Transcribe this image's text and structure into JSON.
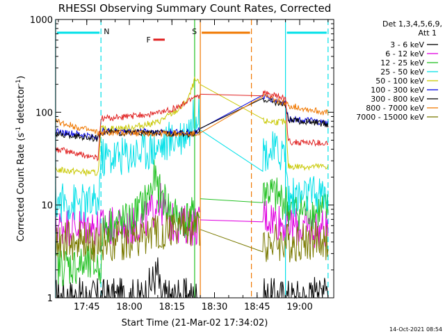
{
  "chart_data": {
    "type": "line",
    "title": "RHESSI Observing Summary Count Rates, Corrected",
    "xlabel": "Start Time (21-Mar-02 17:34:02)",
    "ylabel_main": "Corrected Count Rate (s",
    "ylabel_sup1": "-1",
    "ylabel_mid": " detector",
    "ylabel_sup2": "-1",
    "ylabel_end": ")",
    "y_scale": "log",
    "ylim": [
      1,
      1000
    ],
    "xlim": [
      "17:34:02",
      "19:12:00"
    ],
    "x_ticks": [
      "17:45",
      "18:00",
      "18:15",
      "18:30",
      "18:45",
      "19:00"
    ],
    "y_ticks": [
      "1",
      "10",
      "100",
      "1000"
    ],
    "timestamp": "14-Oct-2021 08:54",
    "legend": {
      "header1": "Det 1,3,4,5,6,9,",
      "header2": "Att 1",
      "placement": "right"
    },
    "flags": [
      {
        "letter": "N",
        "label": "N",
        "color": "#00e0e8",
        "start": "17:34",
        "end": "17:50"
      },
      {
        "letter": "F",
        "label": "F",
        "color": "#e02020",
        "start": "18:06",
        "end": "18:11"
      },
      {
        "letter": "S",
        "label": "S",
        "color": "#f07800",
        "start": "18:25",
        "end": "18:43"
      },
      {
        "letter": "N",
        "label": "",
        "color": "#00e0e8",
        "start": "18:55",
        "end": "19:10"
      }
    ],
    "night_lines": [
      {
        "time": "17:34",
        "color": "#00e0e8",
        "dash": false
      },
      {
        "time": "17:50",
        "color": "#00e0e8",
        "dash": true
      },
      {
        "time": "18:55",
        "color": "#00e0e8",
        "dash": false
      },
      {
        "time": "19:10",
        "color": "#00e0e8",
        "dash": true
      },
      {
        "time": "18:25",
        "color": "#f07800",
        "dash": false
      },
      {
        "time": "18:43",
        "color": "#f07800",
        "dash": true
      },
      {
        "time": "18:23",
        "color": "#20c020",
        "dash": false
      }
    ],
    "gap": [
      "18:25",
      "18:47"
    ],
    "series": [
      {
        "name": "3 - 6 keV",
        "color": "#000000",
        "points": [
          [
            "17:34",
            1.0
          ],
          [
            "18:05",
            1.0
          ],
          [
            "18:10",
            1.9
          ],
          [
            "18:11",
            1.0
          ],
          [
            "19:05",
            1.0
          ],
          [
            "19:06",
            2.0
          ],
          [
            "19:07",
            1.0
          ],
          [
            "19:09",
            1.9
          ],
          [
            "19:10",
            1.0
          ]
        ]
      },
      {
        "name": "6 - 12 keV",
        "color": "#e000e0",
        "points": [
          [
            "17:34",
            6.0
          ],
          [
            "17:50",
            5.8
          ],
          [
            "18:00",
            5.7
          ],
          [
            "18:05",
            6.5
          ],
          [
            "18:08",
            8.5
          ],
          [
            "18:10",
            12
          ],
          [
            "18:12",
            9
          ],
          [
            "18:14",
            6.5
          ],
          [
            "18:17",
            6.2
          ],
          [
            "18:23",
            6.0
          ],
          [
            "18:47",
            8.0
          ],
          [
            "18:52",
            7.0
          ],
          [
            "18:56",
            6.0
          ],
          [
            "19:05",
            5.5
          ],
          [
            "19:10",
            5.6
          ]
        ]
      },
      {
        "name": "12 - 25 keV",
        "color": "#20c020",
        "points": [
          [
            "17:34",
            2.2
          ],
          [
            "17:50",
            2.2
          ],
          [
            "17:51",
            6.0
          ],
          [
            "18:00",
            6.5
          ],
          [
            "18:05",
            10
          ],
          [
            "18:08",
            15
          ],
          [
            "18:09",
            20
          ],
          [
            "18:10",
            14
          ],
          [
            "18:12",
            12
          ],
          [
            "18:15",
            8
          ],
          [
            "18:20",
            7
          ],
          [
            "18:23",
            7.5
          ],
          [
            "18:47",
            15
          ],
          [
            "18:52",
            12
          ],
          [
            "18:55",
            11
          ],
          [
            "18:56",
            9
          ],
          [
            "19:05",
            8.5
          ],
          [
            "19:10",
            8.5
          ]
        ]
      },
      {
        "name": "25 - 50 keV",
        "color": "#00e0e8",
        "points": [
          [
            "17:34",
            11
          ],
          [
            "17:49",
            10
          ],
          [
            "17:50",
            32
          ],
          [
            "18:00",
            35
          ],
          [
            "18:10",
            42
          ],
          [
            "18:18",
            56
          ],
          [
            "18:22",
            72
          ],
          [
            "18:23",
            100
          ],
          [
            "18:47",
            38
          ],
          [
            "18:55",
            37
          ],
          [
            "18:56",
            12
          ],
          [
            "19:10",
            13
          ]
        ]
      },
      {
        "name": "50 - 100 keV",
        "color": "#c8c800",
        "points": [
          [
            "17:34",
            24
          ],
          [
            "17:49",
            22
          ],
          [
            "17:50",
            66
          ],
          [
            "18:00",
            68
          ],
          [
            "18:10",
            78
          ],
          [
            "18:18",
            110
          ],
          [
            "18:21",
            145
          ],
          [
            "18:23",
            220
          ],
          [
            "18:47",
            80
          ],
          [
            "18:55",
            78
          ],
          [
            "18:56",
            26
          ],
          [
            "19:10",
            26
          ]
        ]
      },
      {
        "name": "100 - 300 keV",
        "color": "#0000e0",
        "points": [
          [
            "17:34",
            62
          ],
          [
            "17:49",
            54
          ],
          [
            "17:50",
            63
          ],
          [
            "18:00",
            62
          ],
          [
            "18:10",
            62
          ],
          [
            "18:23",
            60
          ],
          [
            "18:47",
            148
          ],
          [
            "18:55",
            125
          ],
          [
            "18:56",
            86
          ],
          [
            "19:05",
            80
          ],
          [
            "19:10",
            76
          ]
        ]
      },
      {
        "name": "300 - 800 keV",
        "color": "#000000",
        "points": [
          [
            "17:34",
            58
          ],
          [
            "17:49",
            52
          ],
          [
            "17:50",
            61
          ],
          [
            "18:00",
            60
          ],
          [
            "18:10",
            60
          ],
          [
            "18:23",
            58
          ],
          [
            "18:47",
            140
          ],
          [
            "18:55",
            120
          ],
          [
            "18:56",
            82
          ],
          [
            "19:05",
            78
          ],
          [
            "19:10",
            74
          ]
        ]
      },
      {
        "name": "800 - 7000 keV",
        "color": "#f07800",
        "points": [
          [
            "17:34",
            80
          ],
          [
            "17:49",
            60
          ],
          [
            "17:50",
            60
          ],
          [
            "18:00",
            60
          ],
          [
            "18:10",
            59
          ],
          [
            "18:23",
            58
          ],
          [
            "18:47",
            150
          ],
          [
            "18:55",
            125
          ],
          [
            "18:56",
            118
          ],
          [
            "19:05",
            105
          ],
          [
            "19:10",
            98
          ]
        ]
      },
      {
        "name": "7000 - 15000 keV",
        "color": "#7a7a00",
        "points": [
          [
            "17:34",
            4.0
          ],
          [
            "17:50",
            4.0
          ],
          [
            "18:00",
            4.2
          ],
          [
            "18:10",
            5.0
          ],
          [
            "18:15",
            5.6
          ],
          [
            "18:23",
            5.8
          ],
          [
            "18:47",
            4.0
          ],
          [
            "18:55",
            3.9
          ],
          [
            "19:05",
            4.1
          ],
          [
            "19:10",
            4.0
          ]
        ]
      },
      {
        "name": "3 - 6 keV (red)",
        "color": "#e02020",
        "points": [
          [
            "17:34",
            40
          ],
          [
            "17:49",
            32
          ],
          [
            "17:50",
            86
          ],
          [
            "18:00",
            90
          ],
          [
            "18:10",
            98
          ],
          [
            "18:18",
            115
          ],
          [
            "18:23",
            150
          ],
          [
            "18:47",
            160
          ],
          [
            "18:55",
            140
          ],
          [
            "18:56",
            48
          ],
          [
            "19:05",
            47
          ],
          [
            "19:10",
            46
          ]
        ]
      }
    ]
  }
}
